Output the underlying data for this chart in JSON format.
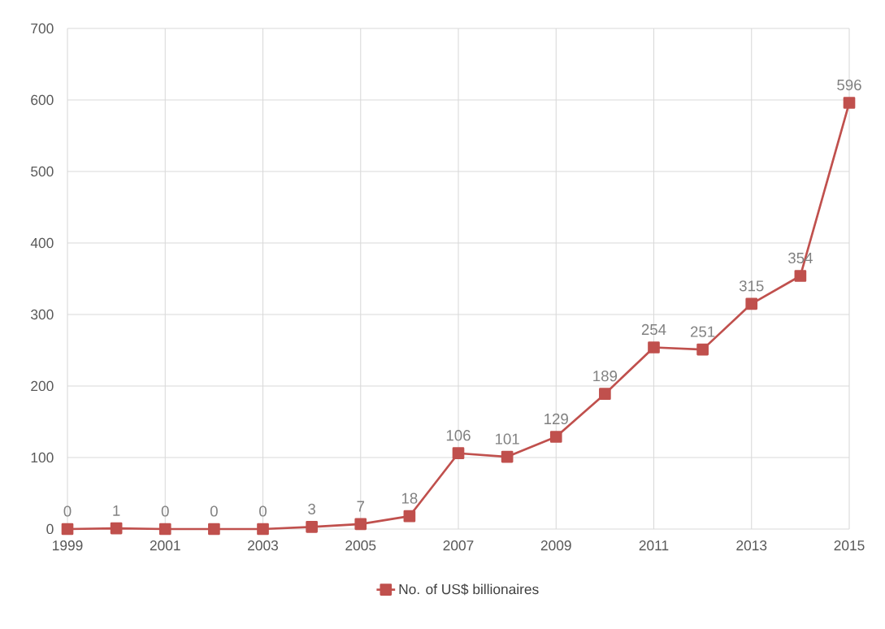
{
  "chart_data": {
    "type": "line",
    "x": [
      1999,
      2000,
      2001,
      2002,
      2003,
      2004,
      2005,
      2006,
      2007,
      2008,
      2009,
      2010,
      2011,
      2012,
      2013,
      2014,
      2015
    ],
    "series": [
      {
        "name": "No. of US$ billionaires",
        "color": "#c0504d",
        "values": [
          0,
          1,
          0,
          0,
          0,
          3,
          7,
          18,
          106,
          101,
          129,
          189,
          254,
          251,
          315,
          354,
          596
        ]
      }
    ],
    "xlim": [
      1999,
      2015
    ],
    "xticks": [
      1999,
      2001,
      2003,
      2005,
      2007,
      2009,
      2011,
      2013,
      2015
    ],
    "ylim": [
      0,
      700
    ],
    "yticks": [
      0,
      100,
      200,
      300,
      400,
      500,
      600,
      700
    ],
    "data_labels": true,
    "grid": true,
    "legend": "bottom",
    "marker": "square",
    "line_style": "solid"
  }
}
